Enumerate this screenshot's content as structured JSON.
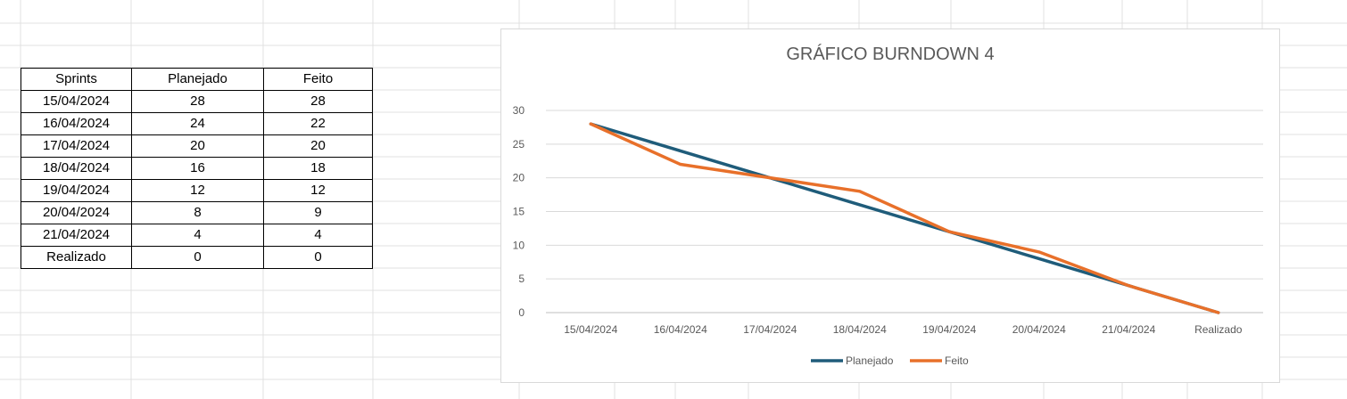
{
  "table": {
    "headers": [
      "Sprints",
      "Planejado",
      "Feito"
    ],
    "rows": [
      [
        "15/04/2024",
        "28",
        "28"
      ],
      [
        "16/04/2024",
        "24",
        "22"
      ],
      [
        "17/04/2024",
        "20",
        "20"
      ],
      [
        "18/04/2024",
        "16",
        "18"
      ],
      [
        "19/04/2024",
        "12",
        "12"
      ],
      [
        "20/04/2024",
        "8",
        "9"
      ],
      [
        "21/04/2024",
        "4",
        "4"
      ],
      [
        "Realizado",
        "0",
        "0"
      ]
    ]
  },
  "chart_data": {
    "type": "line",
    "title": "GRÁFICO BURNDOWN 4",
    "xlabel": "",
    "ylabel": "",
    "categories": [
      "15/04/2024",
      "16/04/2024",
      "17/04/2024",
      "18/04/2024",
      "19/04/2024",
      "20/04/2024",
      "21/04/2024",
      "Realizado"
    ],
    "series": [
      {
        "name": "Planejado",
        "values": [
          28,
          24,
          20,
          16,
          12,
          8,
          4,
          0
        ],
        "color": "#1f5c7a"
      },
      {
        "name": "Feito",
        "values": [
          28,
          22,
          20,
          18,
          12,
          9,
          4,
          0
        ],
        "color": "#e8702a"
      }
    ],
    "ylim": [
      0,
      30
    ],
    "yticks": [
      0,
      5,
      10,
      15,
      20,
      25,
      30
    ],
    "grid": true,
    "legend": "bottom"
  }
}
